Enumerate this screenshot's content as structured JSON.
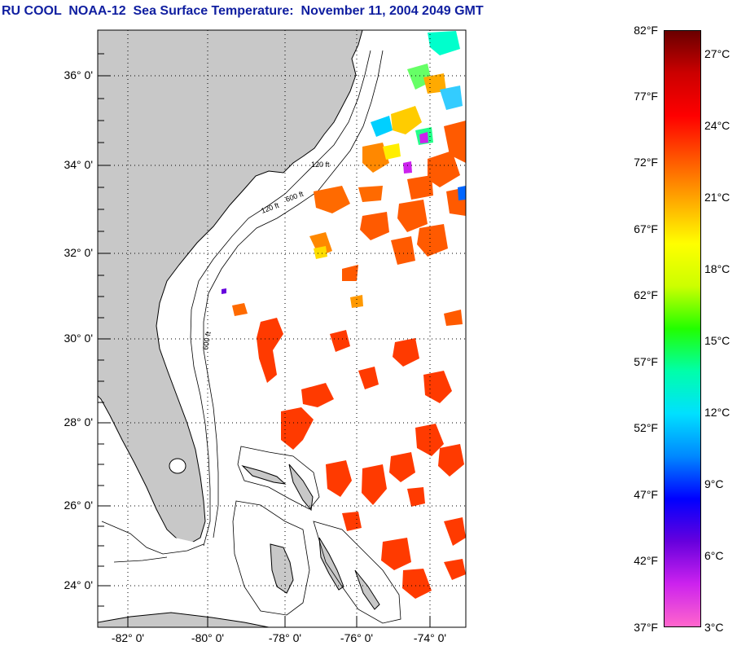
{
  "title": "RU COOL  NOAA-12  Sea Surface Temperature:  November 11, 2004 2049 GMT",
  "map": {
    "land_color": "#c8c8c8",
    "water_color": "#ffffff",
    "lat_labels": [
      "36° 0'",
      "34° 0'",
      "32° 0'",
      "30° 0'",
      "28° 0'",
      "26° 0'",
      "24° 0'"
    ],
    "lon_labels": [
      "-82° 0'",
      "-80° 0'",
      "-78° 0'",
      "-76° 0'",
      "-74° 0'"
    ],
    "contour_labels": [
      "120 ft",
      "600 ft"
    ]
  },
  "colorbar": {
    "fahrenheit_labels": [
      "82°F",
      "77°F",
      "72°F",
      "67°F",
      "62°F",
      "57°F",
      "52°F",
      "47°F",
      "42°F",
      "37°F"
    ],
    "celsius_labels": [
      "27°C",
      "24°C",
      "21°C",
      "18°C",
      "15°C",
      "12°C",
      "9°C",
      "6°C",
      "3°C"
    ],
    "colors": [
      "#ff66cc",
      "#cc22ee",
      "#6600dd",
      "#0000ff",
      "#0088ff",
      "#00e0ff",
      "#00ffaa",
      "#22ff00",
      "#ccff00",
      "#ffff00",
      "#ffaa00",
      "#ff5500",
      "#ff0000",
      "#cc0000",
      "#6a0000"
    ],
    "range_f": [
      37,
      82
    ]
  }
}
